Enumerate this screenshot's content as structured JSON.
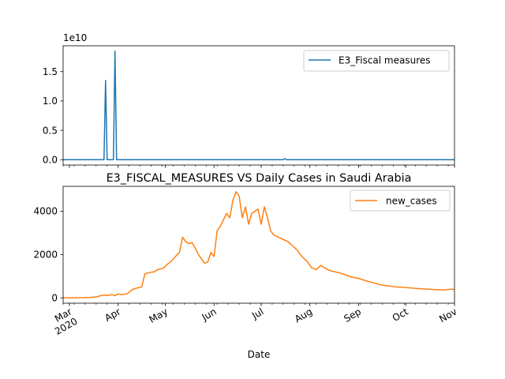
{
  "chart_data": [
    {
      "type": "line",
      "title": "",
      "xlabel": "",
      "ylabel": "",
      "offset_label": "1e10",
      "xlim": [
        "2020-02-26",
        "2020-11-01"
      ],
      "ylim": [
        -0.09,
        1.94
      ],
      "yticks": [
        0.0,
        0.5,
        1.0,
        1.5
      ],
      "ytick_labels": [
        "0.0",
        "0.5",
        "1.0",
        "1.5"
      ],
      "grid": false,
      "legend": "upper right",
      "series": [
        {
          "name": "E3_Fiscal measures",
          "color": "#1f77b4",
          "x": [
            "2020-02-26",
            "2020-03-23",
            "2020-03-24",
            "2020-03-25",
            "2020-03-26",
            "2020-03-27",
            "2020-03-28",
            "2020-03-29",
            "2020-03-30",
            "2020-03-31",
            "2020-04-01",
            "2020-04-02",
            "2020-07-15",
            "2020-07-16",
            "2020-07-17",
            "2020-11-01"
          ],
          "values": [
            0,
            0,
            1.35,
            0,
            0,
            0,
            0,
            0,
            1.85,
            0,
            0,
            0,
            0,
            0.02,
            0,
            0
          ]
        }
      ]
    },
    {
      "type": "line",
      "title": "E3_FISCAL_MEASURES VS Daily Cases in Saudi Arabia",
      "xlabel": "Date",
      "ylabel": "",
      "xlim": [
        "2020-02-26",
        "2020-11-01"
      ],
      "ylim": [
        -250,
        5150
      ],
      "yticks": [
        0,
        2000,
        4000
      ],
      "ytick_labels": [
        "0",
        "2000",
        "4000"
      ],
      "xticks": [
        "2020-03-01",
        "2020-04-01",
        "2020-05-01",
        "2020-06-01",
        "2020-07-01",
        "2020-08-01",
        "2020-09-01",
        "2020-10-01",
        "2020-11-01"
      ],
      "xtick_labels": [
        "Mar\n2020",
        "Apr",
        "May",
        "Jun",
        "Jul",
        "Aug",
        "Sep",
        "Oct",
        "Nov"
      ],
      "grid": false,
      "legend": "upper right",
      "series": [
        {
          "name": "new_cases",
          "color": "#ff7f0e",
          "x": [
            "2020-02-26",
            "2020-03-02",
            "2020-03-06",
            "2020-03-10",
            "2020-03-14",
            "2020-03-18",
            "2020-03-21",
            "2020-03-24",
            "2020-03-26",
            "2020-03-28",
            "2020-03-30",
            "2020-04-01",
            "2020-04-03",
            "2020-04-05",
            "2020-04-07",
            "2020-04-10",
            "2020-04-12",
            "2020-04-14",
            "2020-04-16",
            "2020-04-18",
            "2020-04-20",
            "2020-04-22",
            "2020-04-24",
            "2020-04-26",
            "2020-04-28",
            "2020-04-30",
            "2020-05-02",
            "2020-05-05",
            "2020-05-08",
            "2020-05-10",
            "2020-05-12",
            "2020-05-14",
            "2020-05-16",
            "2020-05-18",
            "2020-05-20",
            "2020-05-22",
            "2020-05-24",
            "2020-05-26",
            "2020-05-28",
            "2020-05-30",
            "2020-06-01",
            "2020-06-03",
            "2020-06-05",
            "2020-06-07",
            "2020-06-09",
            "2020-06-11",
            "2020-06-13",
            "2020-06-15",
            "2020-06-17",
            "2020-06-19",
            "2020-06-21",
            "2020-06-23",
            "2020-06-25",
            "2020-06-27",
            "2020-06-29",
            "2020-07-01",
            "2020-07-03",
            "2020-07-05",
            "2020-07-07",
            "2020-07-09",
            "2020-07-12",
            "2020-07-15",
            "2020-07-18",
            "2020-07-21",
            "2020-07-24",
            "2020-07-27",
            "2020-07-30",
            "2020-08-02",
            "2020-08-05",
            "2020-08-08",
            "2020-08-11",
            "2020-08-14",
            "2020-08-17",
            "2020-08-20",
            "2020-08-24",
            "2020-08-28",
            "2020-09-01",
            "2020-09-05",
            "2020-09-10",
            "2020-09-15",
            "2020-09-20",
            "2020-09-25",
            "2020-09-30",
            "2020-10-05",
            "2020-10-10",
            "2020-10-15",
            "2020-10-20",
            "2020-10-25",
            "2020-10-30",
            "2020-11-01"
          ],
          "values": [
            0,
            0,
            2,
            5,
            15,
            40,
            100,
            120,
            110,
            150,
            100,
            180,
            140,
            160,
            200,
            380,
            430,
            470,
            500,
            1100,
            1150,
            1180,
            1200,
            1300,
            1330,
            1380,
            1530,
            1700,
            1950,
            2100,
            2800,
            2600,
            2500,
            2550,
            2300,
            2000,
            1800,
            1600,
            1650,
            2100,
            1900,
            3100,
            3300,
            3600,
            3900,
            3700,
            4500,
            4900,
            4700,
            3700,
            4200,
            3400,
            3900,
            4000,
            4100,
            3400,
            4200,
            3700,
            3100,
            2900,
            2800,
            2700,
            2600,
            2400,
            2200,
            1900,
            1700,
            1400,
            1300,
            1500,
            1350,
            1250,
            1200,
            1150,
            1050,
            950,
            900,
            800,
            700,
            600,
            550,
            500,
            480,
            450,
            420,
            400,
            380,
            360,
            400,
            380
          ]
        }
      ]
    }
  ]
}
